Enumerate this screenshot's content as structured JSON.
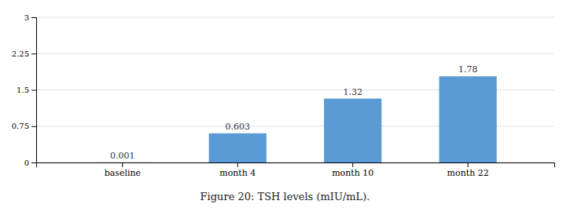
{
  "chart_data": {
    "type": "bar",
    "title": "Figure 20: TSH levels (mIU/mL).",
    "categories": [
      "baseline",
      "month 4",
      "month 10",
      "month 22"
    ],
    "values": [
      0.001,
      0.603,
      1.32,
      1.78
    ],
    "color": "#5B9BD5",
    "ylim": [
      0,
      3
    ],
    "yticks": [
      0,
      0.75,
      1.5,
      2.25,
      3
    ],
    "grid": true,
    "data_labels": true
  }
}
